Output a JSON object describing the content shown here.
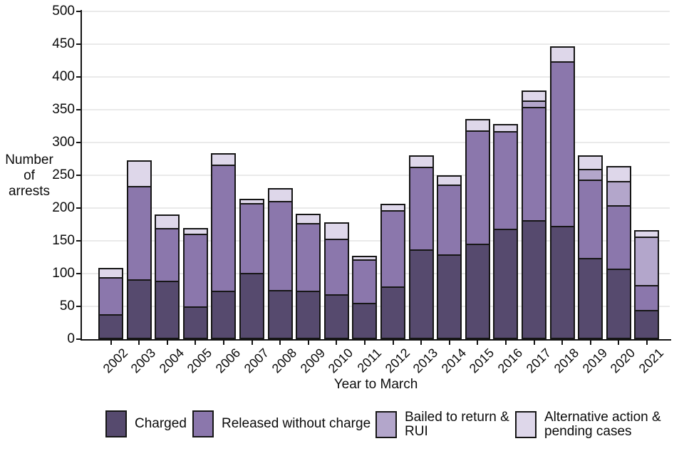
{
  "chart_data": {
    "type": "bar",
    "stacked": true,
    "title": "",
    "xlabel": "Year to March",
    "ylabel": "Number of arrests",
    "ylabel_display": "Number\nof\narrests",
    "ylim": [
      0,
      500
    ],
    "ytick_step": 50,
    "y_tick_labels": [
      "0",
      "50",
      "100",
      "150",
      "200",
      "250",
      "300",
      "350",
      "400",
      "450",
      "500"
    ],
    "grid": "horizontal-light-gray",
    "legend_position": "bottom",
    "categories": [
      "2002",
      "2003",
      "2004",
      "2005",
      "2006",
      "2007",
      "2008",
      "2009",
      "2010",
      "2011",
      "2012",
      "2013",
      "2014",
      "2015",
      "2016",
      "2017",
      "2018",
      "2019",
      "2020",
      "2021"
    ],
    "series": [
      {
        "name": "Charged",
        "legend_label": "Charged",
        "color": "#564a6e",
        "values": [
          38,
          91,
          89,
          50,
          74,
          101,
          75,
          74,
          69,
          55,
          80,
          137,
          129,
          146,
          168,
          181,
          173,
          124,
          108,
          45
        ]
      },
      {
        "name": "Released without charge",
        "legend_label": "Released without charge",
        "color": "#8b77ac",
        "values": [
          57,
          143,
          81,
          111,
          192,
          107,
          136,
          103,
          84,
          67,
          117,
          126,
          107,
          172,
          149,
          173,
          251,
          120,
          96,
          38
        ]
      },
      {
        "name": "Bailed to return & RUI",
        "legend_label": "Bailed to return &\nRUI",
        "color": "#b3a6cb",
        "values": [
          0,
          0,
          0,
          0,
          0,
          0,
          0,
          0,
          0,
          0,
          0,
          0,
          0,
          0,
          0,
          10,
          0,
          16,
          37,
          74
        ]
      },
      {
        "name": "Alternative action & pending cases",
        "legend_label": "Alternative action &\npending cases",
        "color": "#ded7ea",
        "values": [
          14,
          39,
          20,
          9,
          18,
          6,
          19,
          14,
          25,
          5,
          10,
          17,
          14,
          18,
          11,
          15,
          23,
          20,
          23,
          9
        ]
      }
    ],
    "totals": [
      109,
      273,
      190,
      170,
      284,
      214,
      230,
      191,
      178,
      127,
      207,
      280,
      250,
      336,
      328,
      379,
      447,
      280,
      264,
      166
    ]
  },
  "colors": {
    "axis": "#141414",
    "gridline": "#eaeaea",
    "bar_border": "#161616",
    "text": "#0b0b0b"
  }
}
